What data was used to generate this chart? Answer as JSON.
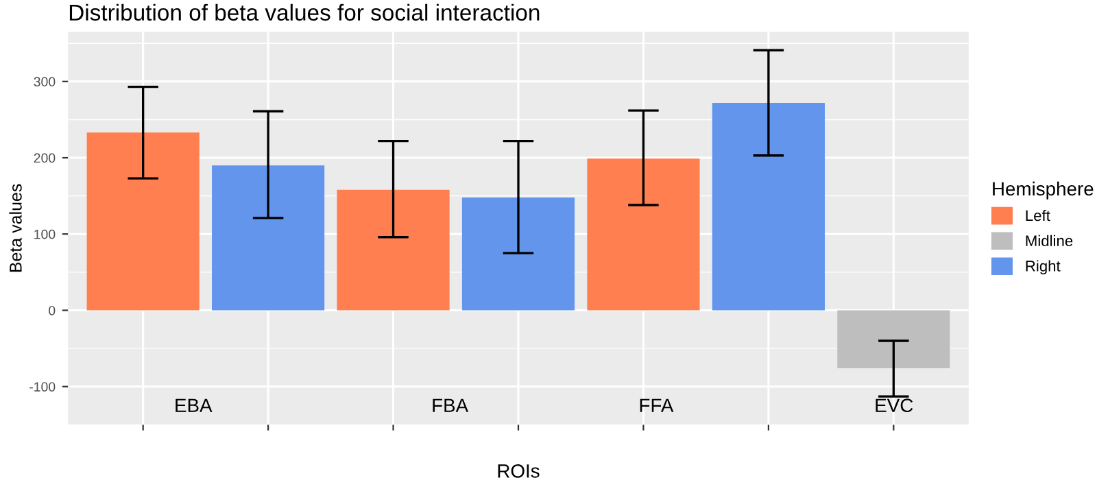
{
  "chart_data": {
    "type": "bar",
    "stacked": true,
    "title": "Distribution of beta values for social interaction",
    "xlabel": "ROIs",
    "ylabel": "Beta values",
    "legend_title": "Hemisphere",
    "categories": [
      null,
      null,
      null,
      null,
      null,
      null,
      null
    ],
    "series": [
      {
        "name": "Left",
        "color": "#ff7f50",
        "values": [
          233,
          null,
          158,
          null,
          199,
          null,
          null
        ],
        "errors": [
          [
            173,
            293
          ],
          null,
          [
            96,
            222
          ],
          null,
          [
            138,
            262
          ],
          null,
          null
        ]
      },
      {
        "name": "Midline",
        "color": "#bebebe",
        "values": [
          null,
          null,
          null,
          null,
          null,
          null,
          -76
        ],
        "errors": [
          null,
          null,
          null,
          null,
          null,
          null,
          [
            -113,
            -40
          ]
        ]
      },
      {
        "name": "Right",
        "color": "#6495ed",
        "values": [
          null,
          190,
          null,
          148,
          null,
          272,
          null
        ],
        "errors": [
          null,
          [
            121,
            261
          ],
          null,
          [
            75,
            222
          ],
          null,
          [
            203,
            341
          ],
          null
        ]
      }
    ],
    "annotations": [
      "EBA",
      "FBA",
      "FFA",
      "EVC"
    ],
    "ylim": [
      -148,
      365
    ],
    "yticks": [
      -100,
      0,
      100,
      200,
      300
    ],
    "grid": true,
    "legend": "right"
  }
}
